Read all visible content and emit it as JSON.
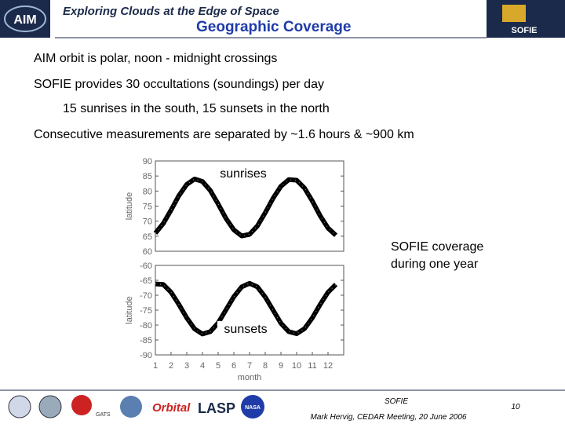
{
  "slide": {
    "header": "Exploring Clouds at the Edge of Space",
    "title": "Geographic Coverage",
    "bullets": [
      "AIM orbit is polar, noon - midnight crossings",
      "SOFIE provides 30 occultations (soundings) per day",
      "15 sunrises in the south, 15 sunsets in the north",
      "Consecutive measurements are separated by ~1.6 hours & ~900 km"
    ],
    "caption": [
      "SOFIE coverage",
      "during one year"
    ],
    "footer": {
      "left_logo": "AIM",
      "right_logo": "SOFIE",
      "gats": "GATS",
      "orbital": "Orbital",
      "lasp": "LASP",
      "nasa": "NASA",
      "project": "SOFIE",
      "meeting": "Mark Hervig, CEDAR Meeting, 20 June 2006",
      "page": "10"
    }
  },
  "chart_data": [
    {
      "type": "line",
      "ylabel": "latitude",
      "annotation": "sunrises",
      "x": [
        1,
        1.5,
        2,
        2.5,
        3,
        3.5,
        4,
        4.5,
        5,
        5.5,
        6,
        6.5,
        7,
        7.5,
        8,
        8.5,
        9,
        9.5,
        10,
        10.5,
        11,
        11.5,
        12,
        12.5
      ],
      "series": [
        {
          "name": "sunrises",
          "color": "#000000",
          "values": [
            66.0,
            69.2,
            73.7,
            78.5,
            82.2,
            84.0,
            83.2,
            80.2,
            75.7,
            70.9,
            67.1,
            65.1,
            65.6,
            68.4,
            72.8,
            77.6,
            81.6,
            83.8,
            83.6,
            81.0,
            76.7,
            71.8,
            67.7,
            65.3
          ]
        }
      ],
      "xlim": [
        1,
        13
      ],
      "ylim": [
        60,
        90
      ],
      "yticks": [
        60,
        65,
        70,
        75,
        80,
        85,
        90
      ]
    },
    {
      "type": "line",
      "ylabel": "latitude",
      "xlabel": "month",
      "annotation": "sunsets",
      "x": [
        1,
        1.5,
        2,
        2.5,
        3,
        3.5,
        4,
        4.5,
        5,
        5.5,
        6,
        6.5,
        7,
        7.5,
        8,
        8.5,
        9,
        9.5,
        10,
        10.5,
        11,
        11.5,
        12,
        12.5
      ],
      "series": [
        {
          "name": "sunsets",
          "color": "#000000",
          "values": [
            -66.2,
            -66.4,
            -69.0,
            -73.1,
            -77.6,
            -81.3,
            -83.0,
            -82.2,
            -79.3,
            -74.9,
            -70.5,
            -67.2,
            -66.0,
            -67.2,
            -70.6,
            -75.0,
            -79.4,
            -82.2,
            -82.9,
            -81.2,
            -77.6,
            -73.1,
            -69.0,
            -66.4
          ]
        }
      ],
      "xlim": [
        1,
        13
      ],
      "ylim": [
        -90,
        -60
      ],
      "yticks": [
        -90,
        -85,
        -80,
        -75,
        -70,
        -65,
        -60
      ],
      "xticks": [
        1,
        2,
        3,
        4,
        5,
        6,
        7,
        8,
        9,
        10,
        11,
        12
      ]
    }
  ]
}
